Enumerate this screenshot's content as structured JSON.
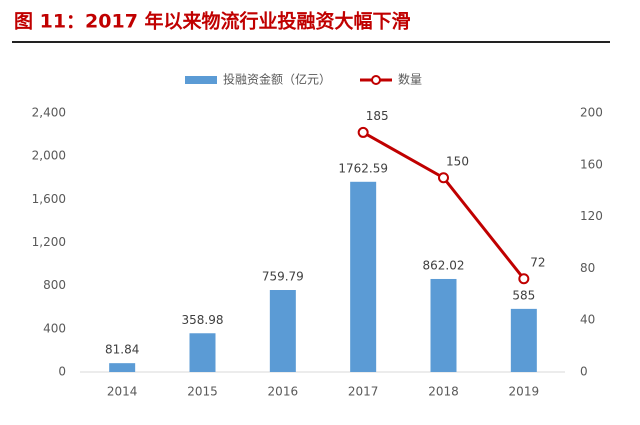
{
  "chart_data": {
    "type": "bar",
    "title": "图 11：2017 年以来物流行业投融资大幅下滑",
    "categories": [
      "2014",
      "2015",
      "2016",
      "2017",
      "2018",
      "2019"
    ],
    "series": [
      {
        "name": "投融资金额（亿元）",
        "color": "#5b9bd5",
        "type": "bar",
        "values": [
          81.84,
          358.98,
          759.79,
          1762.59,
          862.02,
          585
        ]
      },
      {
        "name": "数量",
        "color": "#c00000",
        "type": "line",
        "axis": "y2",
        "values": [
          null,
          null,
          null,
          185,
          150,
          72
        ]
      }
    ],
    "ylim": [
      0,
      2400
    ],
    "yticks": [
      0,
      400,
      800,
      {
        "value": 1200,
        "label": "1,200"
      },
      {
        "value": 1600,
        "label": "1,600"
      },
      {
        "value": 2000,
        "label": "2,000"
      },
      {
        "value": 2400,
        "label": "2,400"
      }
    ],
    "y2lim": [
      0,
      200
    ],
    "y2ticks": [
      0,
      40,
      80,
      120,
      160,
      200
    ],
    "grid": false,
    "legend": "top"
  }
}
